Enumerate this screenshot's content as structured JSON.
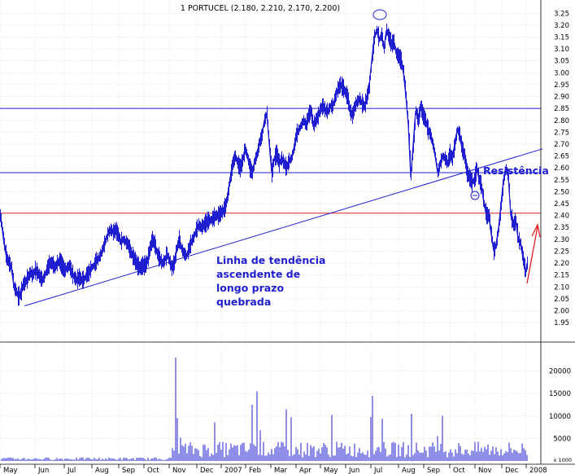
{
  "chart_data": {
    "type": "line",
    "title": "1 PORTUCEL (2.180, 2.210, 2.170, 2.200)",
    "y_range": [
      1.875,
      3.275
    ],
    "y_ticks": [
      "3.25",
      "3.20",
      "3.15",
      "3.10",
      "3.05",
      "3.00",
      "2.95",
      "2.90",
      "2.85",
      "2.80",
      "2.75",
      "2.70",
      "2.65",
      "2.60",
      "2.55",
      "2.50",
      "2.45",
      "2.40",
      "2.35",
      "2.30",
      "2.25",
      "2.20",
      "2.15",
      "2.10",
      "2.05",
      "2.00",
      "1.95"
    ],
    "volume_ticks": [
      "20000",
      "15000",
      "10000",
      "5000"
    ],
    "volume_unit": "x 1000",
    "volume_range": [
      0,
      25000
    ],
    "x_labels": [
      "May",
      "Jun",
      "Jul",
      "Aug",
      "Sep",
      "Oct",
      "Nov",
      "Dec",
      "2007",
      "Feb",
      "Mar",
      "Apr",
      "May",
      "Jun",
      "Jul",
      "Aug",
      "Sep",
      "Oct",
      "Nov",
      "Dec",
      "2008"
    ],
    "grid": true,
    "price_series": {
      "name": "PORTUCEL",
      "color": "#1f1fd0",
      "points": [
        [
          0,
          2.4
        ],
        [
          2,
          2.36
        ],
        [
          5,
          2.28
        ],
        [
          8,
          2.22
        ],
        [
          11,
          2.2
        ],
        [
          14,
          2.18
        ],
        [
          17,
          2.1
        ],
        [
          20,
          2.08
        ],
        [
          22,
          2.06
        ],
        [
          25,
          2.07
        ],
        [
          28,
          2.11
        ],
        [
          31,
          2.12
        ],
        [
          34,
          2.14
        ],
        [
          37,
          2.16
        ],
        [
          40,
          2.15
        ],
        [
          43,
          2.17
        ],
        [
          46,
          2.16
        ],
        [
          49,
          2.14
        ],
        [
          52,
          2.13
        ],
        [
          55,
          2.15
        ],
        [
          58,
          2.18
        ],
        [
          61,
          2.2
        ],
        [
          64,
          2.2
        ],
        [
          67,
          2.18
        ],
        [
          70,
          2.2
        ],
        [
          73,
          2.21
        ],
        [
          76,
          2.19
        ],
        [
          79,
          2.17
        ],
        [
          82,
          2.18
        ],
        [
          85,
          2.19
        ],
        [
          88,
          2.16
        ],
        [
          91,
          2.14
        ],
        [
          94,
          2.13
        ],
        [
          97,
          2.14
        ],
        [
          100,
          2.13
        ],
        [
          103,
          2.13
        ],
        [
          106,
          2.15
        ],
        [
          109,
          2.16
        ],
        [
          112,
          2.18
        ],
        [
          115,
          2.19
        ],
        [
          118,
          2.21
        ],
        [
          121,
          2.22
        ],
        [
          124,
          2.24
        ],
        [
          127,
          2.27
        ],
        [
          130,
          2.3
        ],
        [
          133,
          2.33
        ],
        [
          136,
          2.34
        ],
        [
          139,
          2.33
        ],
        [
          142,
          2.34
        ],
        [
          145,
          2.32
        ],
        [
          148,
          2.29
        ],
        [
          151,
          2.3
        ],
        [
          154,
          2.29
        ],
        [
          157,
          2.28
        ],
        [
          160,
          2.25
        ],
        [
          163,
          2.23
        ],
        [
          166,
          2.21
        ],
        [
          169,
          2.19
        ],
        [
          172,
          2.18
        ],
        [
          175,
          2.19
        ],
        [
          178,
          2.19
        ],
        [
          181,
          2.21
        ],
        [
          184,
          2.26
        ],
        [
          187,
          2.3
        ],
        [
          190,
          2.28
        ],
        [
          193,
          2.24
        ],
        [
          196,
          2.22
        ],
        [
          199,
          2.2
        ],
        [
          202,
          2.21
        ],
        [
          205,
          2.24
        ],
        [
          208,
          2.21
        ],
        [
          211,
          2.18
        ],
        [
          214,
          2.2
        ],
        [
          217,
          2.26
        ],
        [
          220,
          2.3
        ],
        [
          223,
          2.26
        ],
        [
          226,
          2.24
        ],
        [
          229,
          2.23
        ],
        [
          232,
          2.26
        ],
        [
          235,
          2.29
        ],
        [
          238,
          2.31
        ],
        [
          241,
          2.34
        ],
        [
          244,
          2.36
        ],
        [
          247,
          2.35
        ],
        [
          250,
          2.36
        ],
        [
          253,
          2.37
        ],
        [
          256,
          2.38
        ],
        [
          259,
          2.38
        ],
        [
          262,
          2.39
        ],
        [
          265,
          2.4
        ],
        [
          268,
          2.4
        ],
        [
          271,
          2.41
        ],
        [
          274,
          2.42
        ],
        [
          277,
          2.44
        ],
        [
          280,
          2.49
        ],
        [
          283,
          2.56
        ],
        [
          286,
          2.62
        ],
        [
          289,
          2.65
        ],
        [
          292,
          2.62
        ],
        [
          295,
          2.6
        ],
        [
          298,
          2.63
        ],
        [
          301,
          2.68
        ],
        [
          304,
          2.65
        ],
        [
          307,
          2.6
        ],
        [
          310,
          2.58
        ],
        [
          313,
          2.63
        ],
        [
          316,
          2.66
        ],
        [
          319,
          2.71
        ],
        [
          322,
          2.74
        ],
        [
          325,
          2.8
        ],
        [
          328,
          2.83
        ],
        [
          331,
          2.7
        ],
        [
          334,
          2.58
        ],
        [
          337,
          2.64
        ],
        [
          340,
          2.66
        ],
        [
          343,
          2.62
        ],
        [
          346,
          2.64
        ],
        [
          349,
          2.62
        ],
        [
          352,
          2.6
        ],
        [
          355,
          2.63
        ],
        [
          358,
          2.64
        ],
        [
          361,
          2.68
        ],
        [
          364,
          2.74
        ],
        [
          367,
          2.76
        ],
        [
          370,
          2.78
        ],
        [
          373,
          2.8
        ],
        [
          376,
          2.78
        ],
        [
          379,
          2.82
        ],
        [
          382,
          2.84
        ],
        [
          385,
          2.78
        ],
        [
          388,
          2.8
        ],
        [
          391,
          2.82
        ],
        [
          394,
          2.85
        ],
        [
          397,
          2.86
        ],
        [
          400,
          2.84
        ],
        [
          403,
          2.84
        ],
        [
          406,
          2.86
        ],
        [
          409,
          2.86
        ],
        [
          412,
          2.9
        ],
        [
          415,
          2.93
        ],
        [
          418,
          2.95
        ],
        [
          421,
          2.94
        ],
        [
          424,
          2.92
        ],
        [
          427,
          2.9
        ],
        [
          430,
          2.84
        ],
        [
          433,
          2.82
        ],
        [
          436,
          2.86
        ],
        [
          439,
          2.88
        ],
        [
          442,
          2.89
        ],
        [
          445,
          2.87
        ],
        [
          448,
          2.86
        ],
        [
          451,
          2.9
        ],
        [
          454,
          2.95
        ],
        [
          457,
          3.05
        ],
        [
          460,
          3.15
        ],
        [
          463,
          3.18
        ],
        [
          466,
          3.14
        ],
        [
          469,
          3.16
        ],
        [
          472,
          3.1
        ],
        [
          475,
          3.18
        ],
        [
          478,
          3.15
        ],
        [
          481,
          3.12
        ],
        [
          484,
          3.13
        ],
        [
          487,
          3.08
        ],
        [
          490,
          3.07
        ],
        [
          493,
          3.05
        ],
        [
          496,
          3.0
        ],
        [
          499,
          2.9
        ],
        [
          502,
          2.78
        ],
        [
          505,
          2.56
        ],
        [
          508,
          2.7
        ],
        [
          511,
          2.84
        ],
        [
          514,
          2.8
        ],
        [
          517,
          2.86
        ],
        [
          520,
          2.82
        ],
        [
          523,
          2.8
        ],
        [
          526,
          2.76
        ],
        [
          529,
          2.74
        ],
        [
          532,
          2.7
        ],
        [
          535,
          2.65
        ],
        [
          538,
          2.58
        ],
        [
          541,
          2.62
        ],
        [
          544,
          2.65
        ],
        [
          547,
          2.64
        ],
        [
          550,
          2.62
        ],
        [
          553,
          2.66
        ],
        [
          556,
          2.64
        ],
        [
          559,
          2.7
        ],
        [
          562,
          2.76
        ],
        [
          565,
          2.74
        ],
        [
          568,
          2.68
        ],
        [
          571,
          2.65
        ],
        [
          574,
          2.58
        ],
        [
          577,
          2.56
        ],
        [
          580,
          2.54
        ],
        [
          583,
          2.55
        ],
        [
          586,
          2.6
        ],
        [
          589,
          2.55
        ],
        [
          592,
          2.52
        ],
        [
          595,
          2.45
        ],
        [
          598,
          2.4
        ],
        [
          601,
          2.4
        ],
        [
          604,
          2.32
        ],
        [
          607,
          2.25
        ],
        [
          610,
          2.28
        ],
        [
          613,
          2.35
        ],
        [
          616,
          2.45
        ],
        [
          619,
          2.55
        ],
        [
          622,
          2.6
        ],
        [
          625,
          2.56
        ],
        [
          628,
          2.4
        ],
        [
          631,
          2.36
        ],
        [
          634,
          2.38
        ],
        [
          637,
          2.3
        ],
        [
          640,
          2.28
        ],
        [
          643,
          2.22
        ],
        [
          646,
          2.16
        ],
        [
          648,
          2.2
        ]
      ]
    },
    "trendline": {
      "name": "trendline",
      "color": "#1f1fd0",
      "points": [
        [
          30,
          2.02
        ],
        [
          667,
          2.68
        ]
      ]
    },
    "horizontal_lines": [
      {
        "name": "resistance-2.85",
        "value": 2.85,
        "color": "#1f1fd0"
      },
      {
        "name": "resistance-2.58",
        "value": 2.58,
        "color": "#1f1fd0"
      },
      {
        "name": "support-2.41",
        "value": 2.41,
        "color": "#e02020"
      }
    ],
    "arrow": {
      "color": "#e02020"
    },
    "annotations": {
      "resistance_label": "Resistência",
      "trendline_label": [
        "Linha de tendência",
        "ascendente de",
        "longo prazo",
        "quebrada"
      ]
    },
    "volume_series": {
      "name": "volume",
      "color": "#1f1fd0"
    }
  }
}
